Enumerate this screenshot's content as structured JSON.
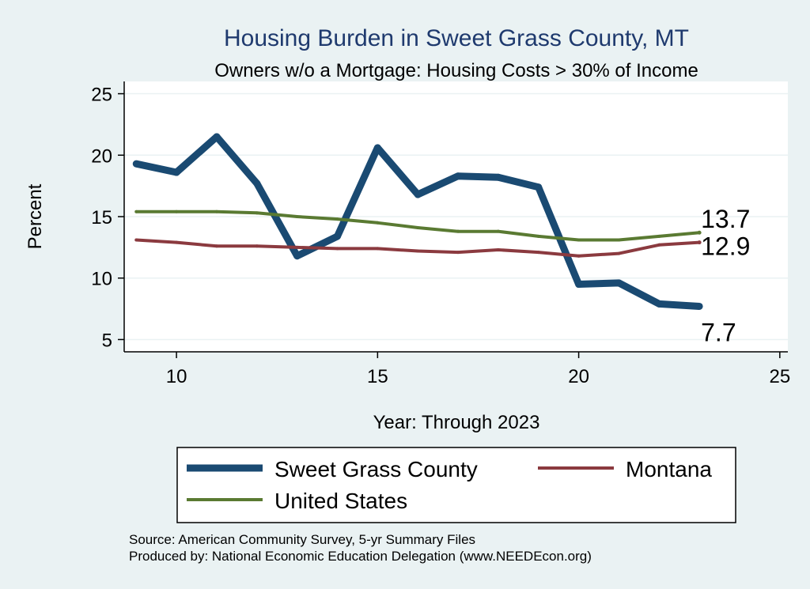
{
  "chart_data": {
    "type": "line",
    "title": "Housing Burden in Sweet Grass County, MT",
    "subtitle": "Owners w/o a Mortgage: Housing Costs > 30% of Income",
    "xlabel": "Year: Through 2023",
    "ylabel": "Percent",
    "xlim": [
      8.7,
      25.2
    ],
    "ylim": [
      4.0,
      26.0
    ],
    "x_ticks": [
      10,
      15,
      20,
      25
    ],
    "y_ticks": [
      5,
      10,
      15,
      20,
      25
    ],
    "grid": "horizontal",
    "legend_position": "bottom",
    "x": [
      9,
      10,
      11,
      12,
      13,
      14,
      15,
      16,
      17,
      18,
      19,
      20,
      21,
      22,
      23
    ],
    "series": [
      {
        "name": "Sweet Grass County",
        "color": "#1a4a72",
        "width": 9,
        "values": [
          19.3,
          18.6,
          21.5,
          17.7,
          11.8,
          13.4,
          20.6,
          16.8,
          18.3,
          18.2,
          17.4,
          9.5,
          9.6,
          7.9,
          7.7
        ],
        "end_label": "7.7"
      },
      {
        "name": "Montana",
        "color": "#8b3a3f",
        "width": 4,
        "values": [
          13.1,
          12.9,
          12.6,
          12.6,
          12.5,
          12.4,
          12.4,
          12.2,
          12.1,
          12.3,
          12.1,
          11.8,
          12.0,
          12.7,
          12.9
        ],
        "end_label": "12.9"
      },
      {
        "name": "United States",
        "color": "#5a7a32",
        "width": 4,
        "values": [
          15.4,
          15.4,
          15.4,
          15.3,
          15.0,
          14.8,
          14.5,
          14.1,
          13.8,
          13.8,
          13.4,
          13.1,
          13.1,
          13.4,
          13.7
        ],
        "end_label": "13.7"
      }
    ]
  },
  "notes": [
    "Source: American Community Survey, 5-yr Summary Files",
    "Produced by: National Economic Education Delegation (www.NEEDEcon.org)"
  ]
}
